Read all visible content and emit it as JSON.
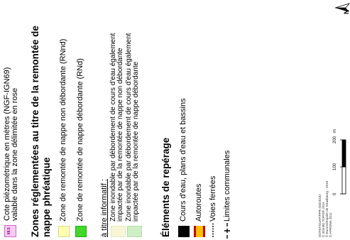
{
  "piezo": {
    "badge": "X8.5",
    "line1": "Cote piézométrique en mètres (NGF-IGN69)",
    "line2": "valable dans la zone délimitée en rose"
  },
  "section_nappe": {
    "title_line1": "Zones réglementées au titre de la remontée de",
    "title_line2": "nappe phréatique",
    "items": [
      {
        "label": "Zone de remontée de nappe non débordante (RNnd)",
        "color": "#ffffb0"
      },
      {
        "label": "Zone de remontée de nappe débordante (RNd)",
        "color": "#41d827"
      }
    ]
  },
  "informatif": {
    "heading": "à titre informatif :",
    "items": [
      {
        "line1": "Zone inondable par débordement de cours d'eau également",
        "line2": "impactée par de la remontée de nappe non débordante",
        "color": "#f7f7d8"
      },
      {
        "line1": "Zone inondable par débordement de cours d'eau également",
        "line2": "impactée par de la remontée de nappe débordante",
        "color": "#ceeec6"
      }
    ]
  },
  "reperage": {
    "title": "Éléments de repérage",
    "items": [
      {
        "label": "Cours d'eau, plans d'eau et bassins"
      },
      {
        "label": "Autoroutes"
      },
      {
        "label": "Voies ferrées"
      },
      {
        "label": "Limites communales"
      }
    ],
    "colors": {
      "water": "#000000",
      "motorway_border": "#c00000",
      "motorway_fill": "#ffc000"
    }
  },
  "scale": {
    "ticks": [
      "0",
      "100",
      "200"
    ],
    "unit": "m"
  },
  "credits": {
    "line1": "DDT67/SUAP/PPR (03/2018)",
    "line2": "© IGN BD TOPO® 2015",
    "line3": "© Eurométropole de Strasbourg - 2015",
    "line4": "© APRONA 2011"
  },
  "north_label": "N"
}
